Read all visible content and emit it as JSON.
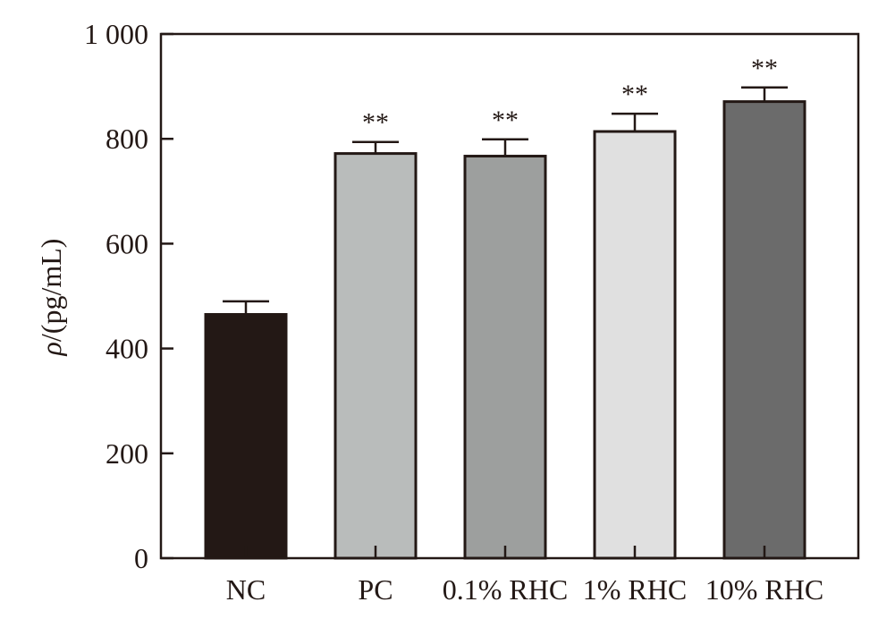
{
  "chart_data": {
    "type": "bar",
    "ylabel_symbol": "ρ",
    "ylabel_unit": "/(pg/mL)",
    "ylim": [
      0,
      1000
    ],
    "yticks": [
      0,
      200,
      400,
      600,
      800,
      1000
    ],
    "ytick_labels": [
      "0",
      "200",
      "400",
      "600",
      "800",
      "1 000"
    ],
    "grid": false,
    "bars": [
      {
        "category": "NC",
        "value": 465,
        "error": 25,
        "significance": "",
        "color": "#231815"
      },
      {
        "category": "PC",
        "value": 772,
        "error": 22,
        "significance": "**",
        "color": "#b9bcbb"
      },
      {
        "category": "0.1% RHC",
        "value": 767,
        "error": 32,
        "significance": "**",
        "color": "#9d9f9e"
      },
      {
        "category": "1% RHC",
        "value": 814,
        "error": 34,
        "significance": "**",
        "color": "#e0e0e0"
      },
      {
        "category": "10% RHC",
        "value": 871,
        "error": 27,
        "significance": "**",
        "color": "#6b6b6b"
      }
    ]
  }
}
